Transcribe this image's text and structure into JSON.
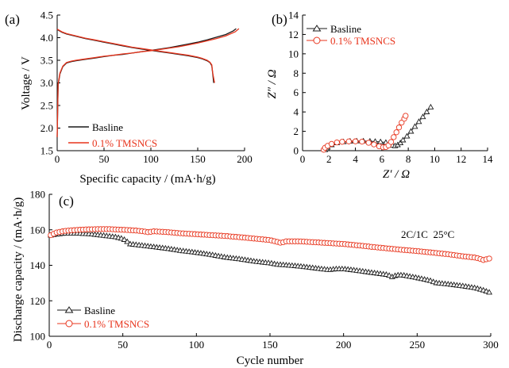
{
  "chart_data": [
    {
      "panel": "(a)",
      "type": "line",
      "xlabel": "Specific capacity / (mA·h/g)",
      "ylabel": "Voltage / V",
      "xlim": [
        0,
        200
      ],
      "ylim": [
        1.5,
        4.5
      ],
      "xticks": [
        0,
        50,
        100,
        150,
        200
      ],
      "yticks": [
        1.5,
        2.0,
        2.5,
        3.0,
        3.5,
        4.0,
        4.5
      ],
      "legend_position": "bottom-left",
      "series": [
        {
          "name": "Basline",
          "color": "#1a1a1a",
          "charge": {
            "x": [
              0,
              1,
              3,
              6,
              10,
              15,
              20,
              30,
              40,
              50,
              60,
              70,
              80,
              90,
              100,
              110,
              120,
              130,
              140,
              150,
              160,
              170,
              180,
              188,
              191
            ],
            "y": [
              1.8,
              2.95,
              3.2,
              3.36,
              3.44,
              3.47,
              3.49,
              3.52,
              3.55,
              3.58,
              3.61,
              3.63,
              3.66,
              3.69,
              3.72,
              3.75,
              3.78,
              3.82,
              3.86,
              3.9,
              3.95,
              4.01,
              4.07,
              4.15,
              4.2
            ]
          },
          "discharge": {
            "x": [
              0,
              5,
              10,
              20,
              30,
              40,
              50,
              60,
              70,
              80,
              90,
              100,
              110,
              120,
              130,
              140,
              150,
              155,
              160,
              163,
              165,
              166,
              167
            ],
            "y": [
              4.18,
              4.12,
              4.08,
              4.03,
              3.98,
              3.94,
              3.9,
              3.86,
              3.82,
              3.78,
              3.75,
              3.72,
              3.69,
              3.66,
              3.63,
              3.6,
              3.56,
              3.53,
              3.49,
              3.45,
              3.38,
              3.2,
              3.0
            ]
          }
        },
        {
          "name": "0.1% TMSNCS",
          "color": "#e8341c",
          "charge": {
            "x": [
              0,
              1,
              3,
              6,
              10,
              15,
              20,
              30,
              40,
              50,
              60,
              70,
              80,
              90,
              100,
              110,
              120,
              130,
              140,
              150,
              160,
              170,
              180,
              190,
              194
            ],
            "y": [
              1.8,
              2.98,
              3.22,
              3.37,
              3.45,
              3.48,
              3.5,
              3.53,
              3.56,
              3.59,
              3.61,
              3.64,
              3.66,
              3.69,
              3.71,
              3.74,
              3.77,
              3.8,
              3.84,
              3.88,
              3.93,
              3.98,
              4.04,
              4.13,
              4.2
            ]
          },
          "discharge": {
            "x": [
              0,
              5,
              10,
              20,
              30,
              40,
              50,
              60,
              70,
              80,
              90,
              100,
              110,
              120,
              130,
              140,
              150,
              155,
              160,
              163,
              165,
              166,
              168
            ],
            "y": [
              4.19,
              4.13,
              4.09,
              4.04,
              3.99,
              3.95,
              3.91,
              3.87,
              3.83,
              3.79,
              3.76,
              3.73,
              3.7,
              3.67,
              3.64,
              3.61,
              3.57,
              3.54,
              3.5,
              3.46,
              3.4,
              3.22,
              3.0
            ]
          }
        }
      ]
    },
    {
      "panel": "(b)",
      "type": "scatter",
      "xlabel": "Z′ / Ω",
      "ylabel": "Z″ / Ω",
      "xlim": [
        0,
        14
      ],
      "ylim": [
        0,
        14
      ],
      "xticks": [
        0,
        2,
        4,
        6,
        8,
        10,
        12,
        14
      ],
      "yticks": [
        0,
        2,
        4,
        6,
        8,
        10,
        12,
        14
      ],
      "legend_position": "top-left",
      "series": [
        {
          "name": "Basline",
          "color": "#1a1a1a",
          "marker": "triangle",
          "x": [
            1.7,
            1.9,
            2.2,
            2.6,
            3.1,
            3.6,
            4.1,
            4.6,
            5.1,
            5.5,
            5.9,
            6.3,
            6.6,
            6.8,
            7.0,
            7.2,
            7.4,
            7.6,
            7.9,
            8.2,
            8.5,
            8.8,
            9.1,
            9.4,
            9.7
          ],
          "y": [
            0.1,
            0.35,
            0.6,
            0.8,
            0.92,
            0.98,
            1.0,
            1.0,
            0.98,
            0.95,
            0.92,
            0.85,
            0.7,
            0.55,
            0.5,
            0.6,
            0.8,
            1.1,
            1.5,
            2.0,
            2.5,
            3.0,
            3.5,
            4.0,
            4.5
          ]
        },
        {
          "name": "0.1% TMSNCS",
          "color": "#e8341c",
          "marker": "circle",
          "x": [
            1.6,
            1.7,
            1.9,
            2.2,
            2.6,
            3.0,
            3.5,
            4.0,
            4.5,
            5.0,
            5.4,
            5.8,
            6.1,
            6.3,
            6.5,
            6.7,
            6.9,
            7.1,
            7.3,
            7.5,
            7.7,
            7.8
          ],
          "y": [
            0.1,
            0.3,
            0.5,
            0.7,
            0.85,
            0.92,
            0.96,
            0.97,
            0.93,
            0.82,
            0.65,
            0.45,
            0.35,
            0.38,
            0.55,
            0.9,
            1.4,
            1.9,
            2.4,
            2.9,
            3.3,
            3.6
          ]
        }
      ]
    },
    {
      "panel": "(c)",
      "type": "scatter",
      "xlabel": "Cycle number",
      "ylabel": "Discharge capacity / (mA·h/g)",
      "xlim": [
        0,
        300
      ],
      "ylim": [
        100,
        180
      ],
      "xticks": [
        0,
        50,
        100,
        150,
        200,
        250,
        300
      ],
      "yticks": [
        100,
        120,
        140,
        160,
        180
      ],
      "legend_position": "bottom-left",
      "annotation": "2C/1C  25°C",
      "series": [
        {
          "name": "Basline",
          "color": "#1a1a1a",
          "marker": "triangle",
          "x": [
            1,
            5,
            10,
            15,
            20,
            25,
            30,
            35,
            40,
            45,
            50,
            52,
            55,
            60,
            70,
            80,
            90,
            100,
            110,
            120,
            130,
            140,
            150,
            155,
            160,
            170,
            180,
            190,
            195,
            200,
            210,
            220,
            230,
            233,
            236,
            240,
            250,
            260,
            262,
            270,
            280,
            290,
            295,
            300
          ],
          "y": [
            157,
            157.5,
            158,
            158,
            158,
            157.8,
            157.5,
            157,
            156.5,
            156,
            155,
            154,
            152,
            151.5,
            150.5,
            149.5,
            148.2,
            147.2,
            146,
            144.5,
            143.5,
            142.2,
            141.3,
            140.5,
            140.2,
            139.5,
            138.5,
            137.5,
            138,
            138,
            137,
            135.8,
            134.7,
            133.5,
            134.5,
            134.5,
            133,
            131.2,
            130.2,
            129.5,
            128.5,
            127.2,
            126,
            124.5
          ]
        },
        {
          "name": "0.1% TMSNCS",
          "color": "#e8341c",
          "marker": "circle",
          "x": [
            1,
            5,
            10,
            15,
            20,
            25,
            30,
            35,
            40,
            45,
            50,
            55,
            60,
            65,
            68,
            70,
            80,
            90,
            100,
            110,
            120,
            130,
            140,
            150,
            155,
            158,
            160,
            170,
            180,
            190,
            200,
            210,
            220,
            230,
            240,
            250,
            260,
            270,
            280,
            290,
            295,
            300
          ],
          "y": [
            157,
            158.5,
            159.3,
            159.7,
            160,
            160.2,
            160.3,
            160.4,
            160.4,
            160.2,
            160,
            159.8,
            159.5,
            159,
            158.5,
            159.2,
            158.7,
            158,
            157.5,
            157,
            156.5,
            155.8,
            155,
            154.2,
            153.2,
            152.5,
            153.5,
            153.5,
            153,
            152.5,
            152,
            151.2,
            150.3,
            149.5,
            148.7,
            148,
            147.2,
            146.3,
            145.2,
            144.3,
            143,
            144
          ]
        }
      ]
    }
  ]
}
